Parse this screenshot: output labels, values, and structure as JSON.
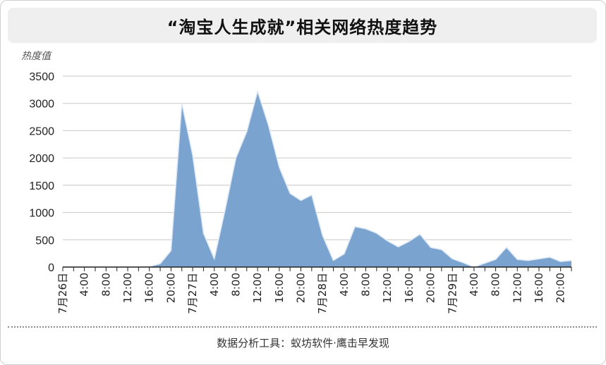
{
  "title": "“淘宝人生成就”相关网络热度趋势",
  "source": "数据分析工具：蚁坊软件·鹰击早发现",
  "colors": {
    "area_fill": "#7aa3d0",
    "area_stroke": "#dce8f5",
    "grid": "#c8c8c8",
    "axis": "#222222",
    "text": "#222222"
  },
  "chart_data": {
    "type": "area",
    "ylabel": "热度值",
    "ylim": [
      0,
      3500
    ],
    "yticks": [
      0,
      500,
      1000,
      1500,
      2000,
      2500,
      3000,
      3500
    ],
    "grid": true,
    "interval_hours": 2,
    "x_labels": [
      {
        "i": 0,
        "label": "7月26日"
      },
      {
        "i": 2,
        "label": "4:00"
      },
      {
        "i": 4,
        "label": "8:00"
      },
      {
        "i": 6,
        "label": "12:00"
      },
      {
        "i": 8,
        "label": "16:00"
      },
      {
        "i": 10,
        "label": "20:00"
      },
      {
        "i": 12,
        "label": "7月27日"
      },
      {
        "i": 14,
        "label": "4:00"
      },
      {
        "i": 16,
        "label": "8:00"
      },
      {
        "i": 18,
        "label": "12:00"
      },
      {
        "i": 20,
        "label": "16:00"
      },
      {
        "i": 22,
        "label": "20:00"
      },
      {
        "i": 24,
        "label": "7月28日"
      },
      {
        "i": 26,
        "label": "4:00"
      },
      {
        "i": 28,
        "label": "8:00"
      },
      {
        "i": 30,
        "label": "12:00"
      },
      {
        "i": 32,
        "label": "16:00"
      },
      {
        "i": 34,
        "label": "20:00"
      },
      {
        "i": 36,
        "label": "7月29日"
      },
      {
        "i": 38,
        "label": "4:00"
      },
      {
        "i": 40,
        "label": "8:00"
      },
      {
        "i": 42,
        "label": "12:00"
      },
      {
        "i": 44,
        "label": "16:00"
      },
      {
        "i": 46,
        "label": "20:00"
      }
    ],
    "values": [
      0,
      0,
      0,
      0,
      0,
      0,
      0,
      0,
      10,
      60,
      300,
      3000,
      2050,
      620,
      150,
      1050,
      2000,
      2480,
      3220,
      2600,
      1830,
      1350,
      1220,
      1320,
      580,
      120,
      240,
      740,
      700,
      620,
      480,
      370,
      470,
      600,
      360,
      320,
      150,
      80,
      0,
      70,
      140,
      360,
      140,
      120,
      150,
      180,
      100,
      120
    ]
  }
}
